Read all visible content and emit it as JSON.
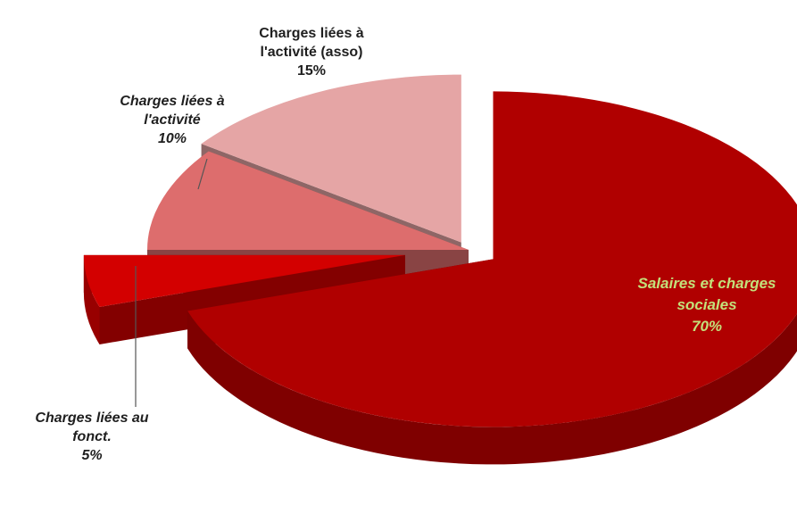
{
  "chart_data": {
    "type": "pie",
    "title": "",
    "slices": [
      {
        "lines": [
          "Salaires et charges",
          "sociales"
        ],
        "value_label": "70%",
        "value": 70,
        "color": "#b00000",
        "exploded": true
      },
      {
        "lines": [
          "Charges liées au",
          "fonct."
        ],
        "value_label": "5%",
        "value": 5,
        "color": "#d30000",
        "exploded": true
      },
      {
        "lines": [
          "Charges liées à",
          "l'activité"
        ],
        "value_label": "10%",
        "value": 10,
        "color": "#dd6d6d",
        "exploded": false
      },
      {
        "lines": [
          "Charges liées à",
          "l'activité (asso)"
        ],
        "value_label": "15%",
        "value": 15,
        "color": "#e5a5a5",
        "exploded": true
      }
    ]
  }
}
